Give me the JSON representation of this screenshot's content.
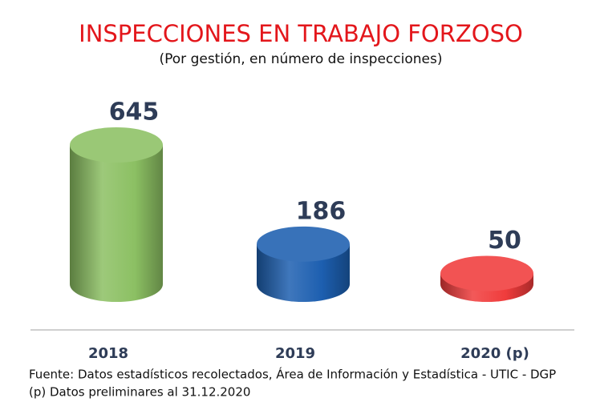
{
  "chart_data": {
    "type": "cylinder",
    "title": "INSPECCIONES EN TRABAJO FORZOSO",
    "subtitle": "(Por gestión, en número de inspecciones)",
    "categories": [
      "2018",
      "2019",
      "2020 (p)"
    ],
    "values": [
      645,
      186,
      50
    ],
    "colors": [
      "#8cc063",
      "#1d5fb0",
      "#f03c3c"
    ],
    "notes": [
      "Fuente: Datos estadísticos recolectados, Área de Información y Estadística - UTIC - DGP",
      "(p) Datos preliminares al 31.12.2020"
    ]
  }
}
